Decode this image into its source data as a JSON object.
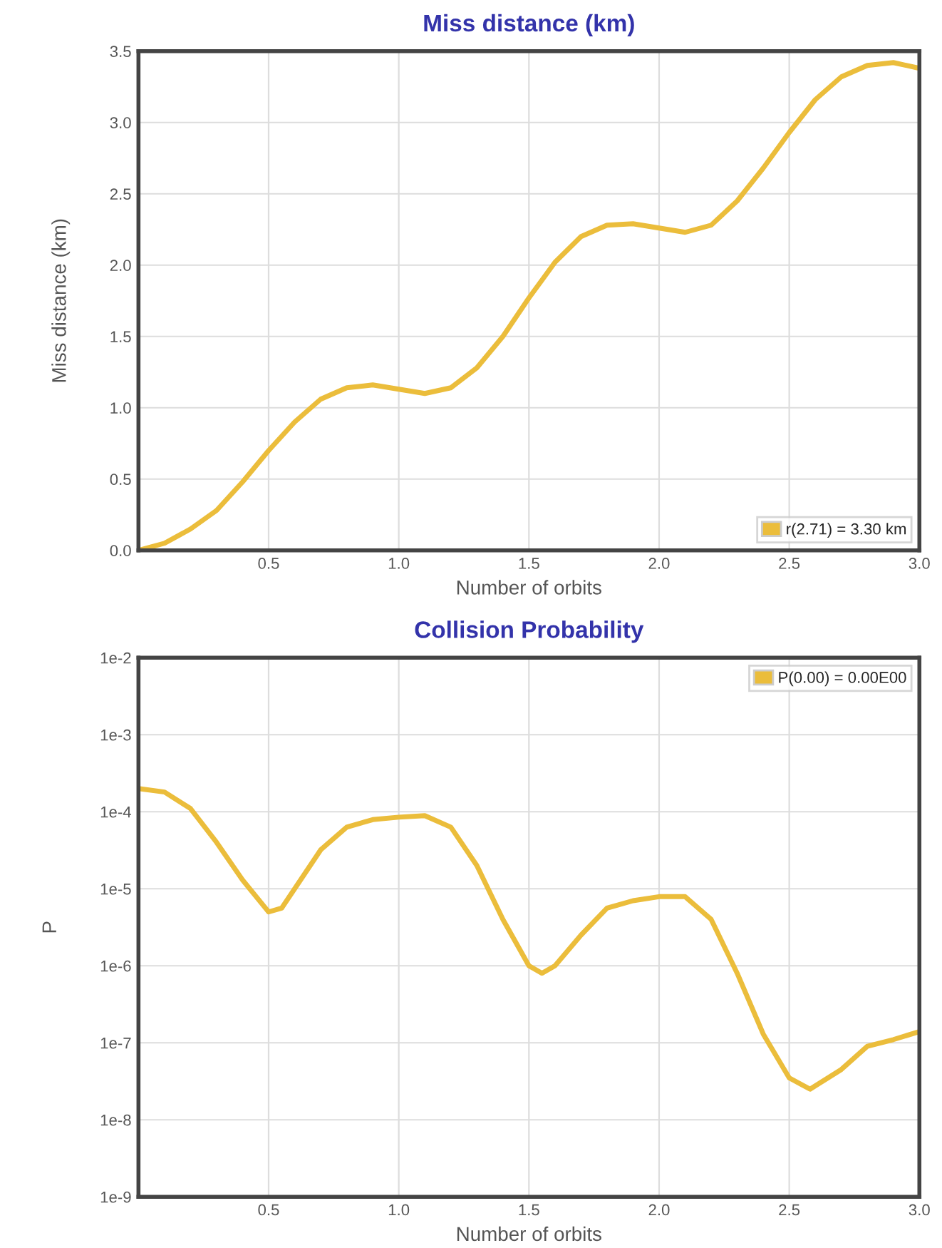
{
  "chart_data": [
    {
      "type": "line",
      "title": "Miss distance (km)",
      "xlabel": "Number of orbits",
      "ylabel": "Miss distance (km)",
      "x": [
        0,
        0.1,
        0.2,
        0.3,
        0.4,
        0.5,
        0.6,
        0.7,
        0.8,
        0.9,
        1.0,
        1.1,
        1.2,
        1.3,
        1.4,
        1.5,
        1.6,
        1.7,
        1.8,
        1.9,
        2.0,
        2.1,
        2.2,
        2.3,
        2.4,
        2.5,
        2.6,
        2.7,
        2.8,
        2.9,
        3.0
      ],
      "series": [
        {
          "name": "r(2.71) = 3.30 km",
          "color": "#ebbd3b",
          "values": [
            0,
            0.05,
            0.15,
            0.28,
            0.48,
            0.7,
            0.9,
            1.06,
            1.14,
            1.16,
            1.13,
            1.1,
            1.14,
            1.28,
            1.5,
            1.77,
            2.02,
            2.2,
            2.28,
            2.29,
            2.26,
            2.23,
            2.28,
            2.45,
            2.68,
            2.93,
            3.16,
            3.32,
            3.4,
            3.42,
            3.38
          ]
        }
      ],
      "xlim": [
        0,
        3
      ],
      "xticks": [
        {
          "value": 0.5,
          "label": "0.5"
        },
        {
          "value": 1,
          "label": "1.0"
        },
        {
          "value": 1.5,
          "label": "1.5"
        },
        {
          "value": 2,
          "label": "2.0"
        },
        {
          "value": 2.5,
          "label": "2.5"
        },
        {
          "value": 3,
          "label": "3.0"
        }
      ],
      "ylim": [
        0,
        3.5
      ],
      "yticks": [
        {
          "value": 0,
          "label": "0.0"
        },
        {
          "value": 0.5,
          "label": "0.5"
        },
        {
          "value": 1,
          "label": "1.0"
        },
        {
          "value": 1.5,
          "label": "1.5"
        },
        {
          "value": 2,
          "label": "2.0"
        },
        {
          "value": 2.5,
          "label": "2.5"
        },
        {
          "value": 3,
          "label": "3.0"
        },
        {
          "value": 3.5,
          "label": "3.5"
        }
      ],
      "grid": true,
      "legend": "bottom right"
    },
    {
      "type": "line",
      "title": "Collision Probability",
      "xlabel": "Number of orbits",
      "ylabel": "P",
      "log": "y",
      "x": [
        0,
        0.1,
        0.2,
        0.3,
        0.4,
        0.5,
        0.55,
        0.6,
        0.7,
        0.8,
        0.9,
        1.0,
        1.1,
        1.2,
        1.3,
        1.4,
        1.5,
        1.55,
        1.6,
        1.7,
        1.8,
        1.9,
        2.0,
        2.1,
        2.2,
        2.3,
        2.4,
        2.5,
        2.58,
        2.7,
        2.8,
        2.9,
        3.0
      ],
      "series": [
        {
          "name": "P(0.00) = 0.00E00",
          "color": "#ebbd3b",
          "values": [
            0.0002,
            0.00018,
            0.00011,
            4e-05,
            1.3e-05,
            5e-06,
            5.6e-06,
            1e-05,
            3.2e-05,
            6.3e-05,
            7.9e-05,
            8.5e-05,
            8.9e-05,
            6.3e-05,
            2e-05,
            4e-06,
            1e-06,
            8e-07,
            1e-06,
            2.5e-06,
            5.6e-06,
            7e-06,
            7.9e-06,
            7.9e-06,
            4e-06,
            8e-07,
            1.3e-07,
            3.5e-08,
            2.5e-08,
            4.5e-08,
            9e-08,
            1.1e-07,
            1.4e-07
          ]
        }
      ],
      "xlim": [
        0,
        3
      ],
      "xticks": [
        {
          "value": 0.5,
          "label": "0.5"
        },
        {
          "value": 1,
          "label": "1.0"
        },
        {
          "value": 1.5,
          "label": "1.5"
        },
        {
          "value": 2,
          "label": "2.0"
        },
        {
          "value": 2.5,
          "label": "2.5"
        },
        {
          "value": 3,
          "label": "3.0"
        }
      ],
      "ylim": [
        1e-09,
        0.01
      ],
      "yticks": [
        {
          "value": 1e-09,
          "label": "1e-9"
        },
        {
          "value": 1e-08,
          "label": "1e-8"
        },
        {
          "value": 1e-07,
          "label": "1e-7"
        },
        {
          "value": 1e-06,
          "label": "1e-6"
        },
        {
          "value": 1e-05,
          "label": "1e-5"
        },
        {
          "value": 0.0001,
          "label": "1e-4"
        },
        {
          "value": 0.001,
          "label": "1e-3"
        },
        {
          "value": 0.01,
          "label": "1e-2"
        }
      ],
      "grid": true,
      "legend": "top right"
    }
  ]
}
